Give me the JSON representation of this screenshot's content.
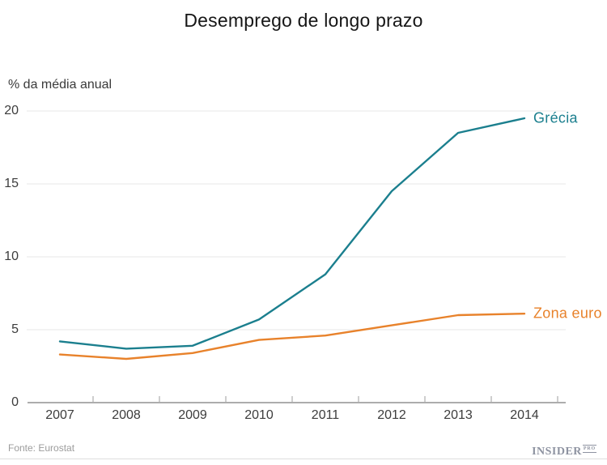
{
  "title": "Desemprego de longo prazo",
  "chart_data": {
    "type": "line",
    "title": "Desemprego de longo prazo",
    "xlabel": "",
    "ylabel": "% da média anual",
    "categories": [
      "2007",
      "2008",
      "2009",
      "2010",
      "2011",
      "2012",
      "2013",
      "2014"
    ],
    "series": [
      {
        "id": "grecia",
        "name": "Grécia",
        "color": "#1b7f8e",
        "values": [
          4.2,
          3.7,
          3.9,
          5.7,
          8.8,
          14.5,
          18.5,
          19.5
        ]
      },
      {
        "id": "zona-euro",
        "name": "Zona euro",
        "color": "#e8822b",
        "values": [
          3.3,
          3.0,
          3.4,
          4.3,
          4.6,
          5.3,
          6.0,
          6.1
        ]
      }
    ],
    "ylim": [
      0,
      20
    ],
    "yticks": [
      0,
      5,
      10,
      15,
      20
    ],
    "grid": "horizontal",
    "legend_position": "line-end-labels"
  },
  "footer": {
    "source": "Fonte: Eurostat",
    "logo": {
      "name": "INSIDER",
      "suffix": "PRO"
    }
  },
  "colors": {
    "grecia_line": "#1b7f8e",
    "zona_euro_line": "#e8822b",
    "gridline": "#e7e7e7",
    "axis": "#adadad",
    "tick_text": "#3c3c3c",
    "title_text": "#161616",
    "source_text": "#9c9c9c",
    "logo_gray": "#8e93a1"
  }
}
